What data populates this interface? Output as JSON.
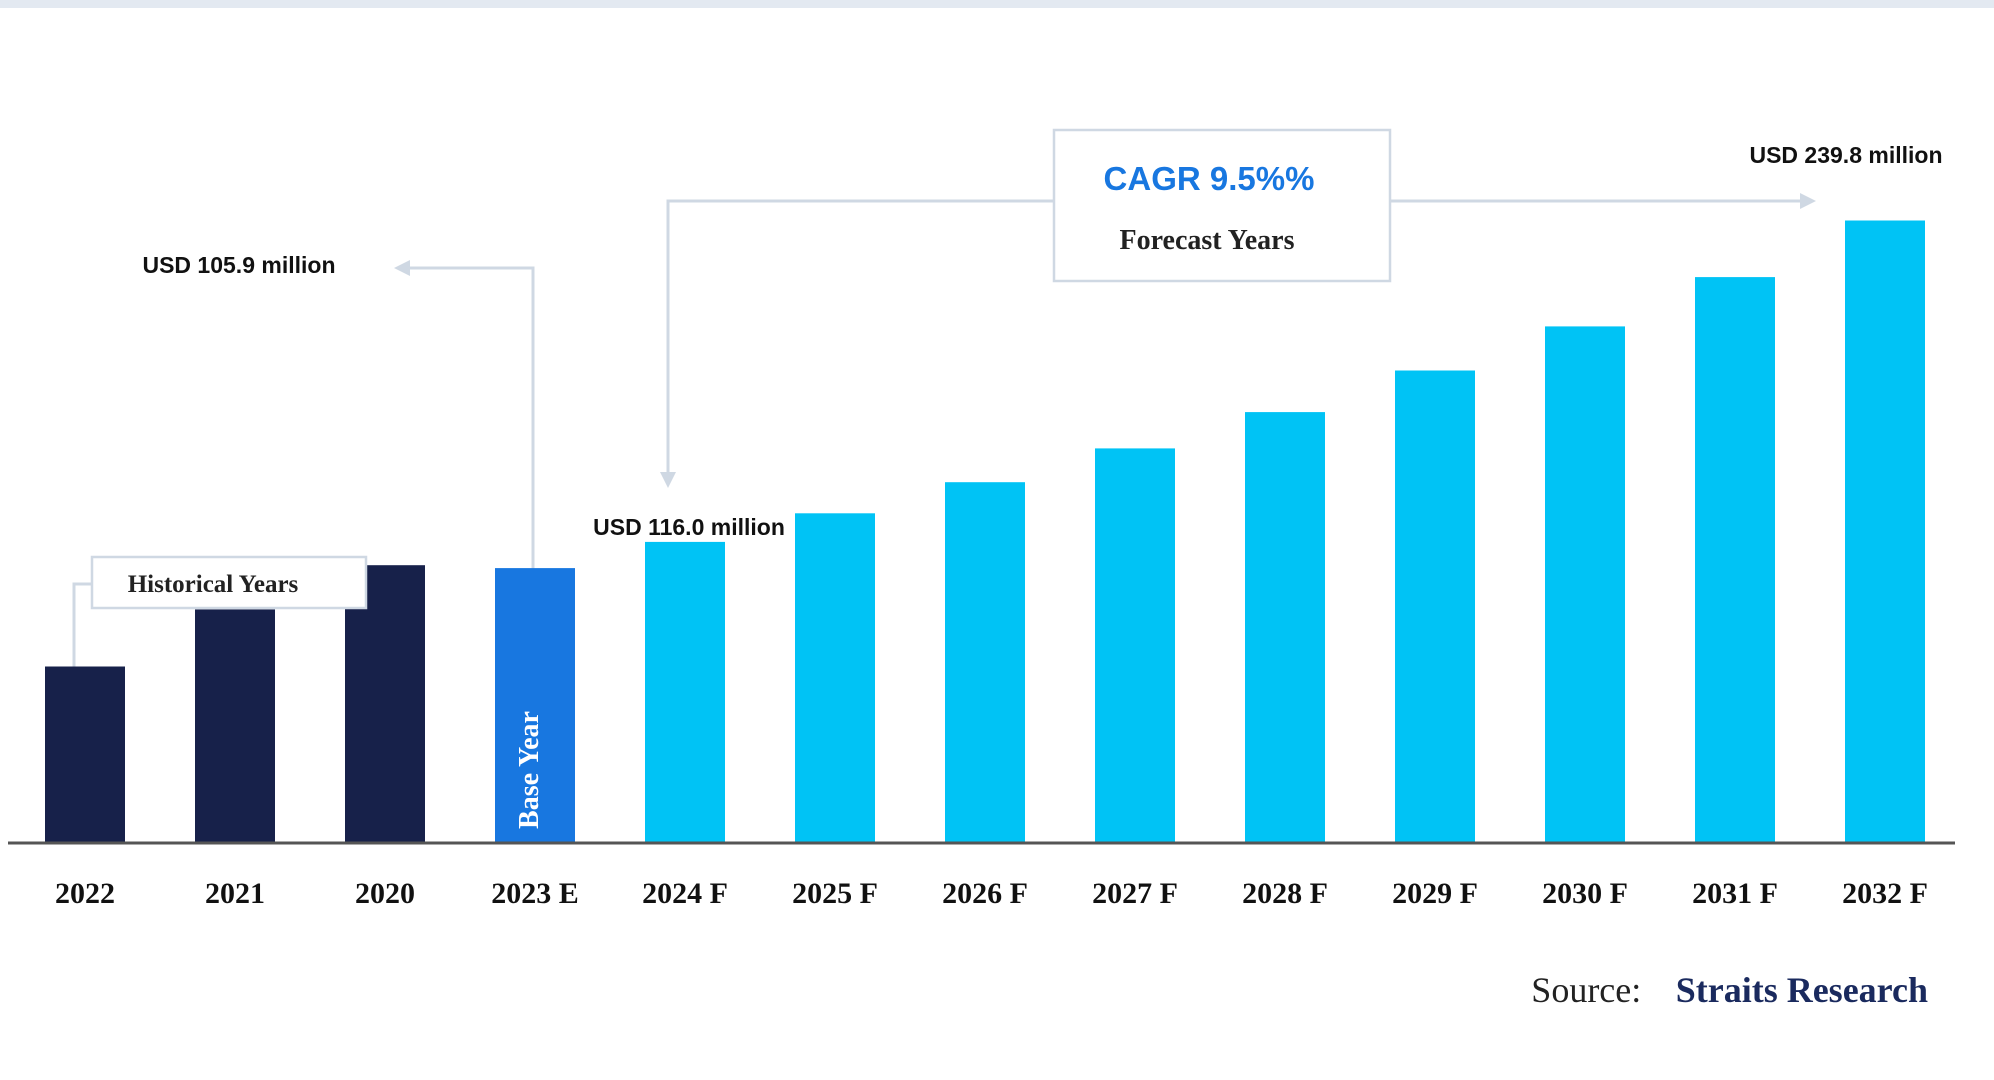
{
  "chart_data": {
    "type": "bar",
    "categories": [
      "2022",
      "2021",
      "2020",
      "2023 E",
      "2024 F",
      "2025 F",
      "2026 F",
      "2027 F",
      "2028 F",
      "2029 F",
      "2030 F",
      "2031 F",
      "2032 F"
    ],
    "values": [
      68,
      90,
      107,
      105.9,
      116.0,
      127,
      139,
      152,
      166,
      182,
      199,
      218,
      239.8
    ],
    "bar_groups": [
      "historical",
      "historical",
      "historical",
      "base",
      "forecast",
      "forecast",
      "forecast",
      "forecast",
      "forecast",
      "forecast",
      "forecast",
      "forecast",
      "forecast"
    ],
    "ylim": [
      0,
      250
    ],
    "grid": false,
    "colors": {
      "historical": "#17214a",
      "base": "#1877e0",
      "forecast": "#00c3f5",
      "axis": "#555555",
      "connector": "#cfd8e3",
      "cagr": "#1877e0",
      "source_name": "#1a2a5e"
    },
    "annotations": {
      "base_value": "USD 105.9 million",
      "first_forecast_value": "USD 116.0 million",
      "last_forecast_value": "USD 239.8 million",
      "cagr": "CAGR 9.5%%",
      "forecast_label": "Forecast Years",
      "historical_label": "Historical Years",
      "base_bar_label": "Base Year"
    }
  },
  "source": {
    "label": "Source:",
    "name": "Straits Research"
  }
}
